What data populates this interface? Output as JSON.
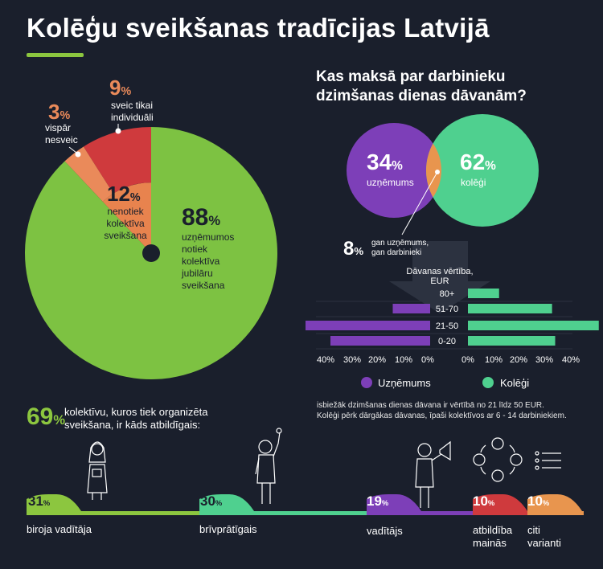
{
  "title": "Kolēģu sveikšanas tradīcijas Latvijā",
  "pie": {
    "slices": [
      {
        "key": "notiek",
        "value": 88,
        "pct": "88",
        "label": "uzņēmumos notiek kolektīva jubilāru sveikšana",
        "color": "#7dc242"
      },
      {
        "key": "nenotiek",
        "value": 12,
        "pct": "12",
        "label": "nenotiek kolektīva sveikšana",
        "color": "#e8834e"
      }
    ],
    "sub": [
      {
        "key": "individuali",
        "value": 9,
        "pct": "9",
        "label": "sveic tikai individuāli",
        "color": "#cf3a3d"
      },
      {
        "key": "nesveic",
        "value": 3,
        "pct": "3",
        "label": "vispār nesveic",
        "color": "#ea8a5a"
      }
    ]
  },
  "venn": {
    "question": "Kas maksā par darbinieku dzimšanas dienas dāvanām?",
    "company": {
      "pct": "34",
      "label": "uzņēmums",
      "color": "#7d3fb8"
    },
    "colleagues": {
      "pct": "62",
      "label": "kolēģi",
      "color": "#4fd08f"
    },
    "both": {
      "pct": "8",
      "label": "gan uzņēmums, gan darbinieki",
      "color": "#e8954e"
    }
  },
  "chart_data": {
    "type": "bar",
    "title": "Dāvanas vērtība, EUR",
    "categories": [
      "80+",
      "51-70",
      "21-50",
      "0-20"
    ],
    "series": [
      {
        "name": "Uzņēmums",
        "values": [
          0,
          12,
          40,
          32
        ],
        "color": "#7d3fb8"
      },
      {
        "name": "Kolēģi",
        "values": [
          10,
          27,
          42,
          28
        ],
        "color": "#4fd08f"
      }
    ],
    "xlim": [
      0,
      40
    ],
    "left_ticks": [
      "40%",
      "30%",
      "20%",
      "10%",
      "0%"
    ],
    "right_ticks": [
      "0%",
      "10%",
      "20%",
      "30%",
      "40%"
    ]
  },
  "legend": [
    {
      "name": "Uzņēmums",
      "color": "#7d3fb8"
    },
    {
      "name": "Kolēģi",
      "color": "#4fd08f"
    }
  ],
  "note": {
    "line1": "isbiežāk dzimšanas dienas dāvana ir vērtībā no 21 līdz 50 EUR.",
    "line2": "Kolēģi pērk dārgākas dāvanas, īpaši kolektīvos ar 6 - 14 darbiniekiem."
  },
  "stat": {
    "pct": "69",
    "text1": "kolektīvu, kuros tiek organizēta",
    "text2": "sveikšana, ir kāds atbildīgais:"
  },
  "responsible": [
    {
      "pct": "31",
      "label1": "biroja vadītāja",
      "label2": "",
      "color": "#8cc63f"
    },
    {
      "pct": "30",
      "label1": "brīvprātīgais",
      "label2": "",
      "color": "#4fd08f"
    },
    {
      "pct": "19",
      "label1": "vadītājs",
      "label2": "",
      "color": "#7d3fb8"
    },
    {
      "pct": "10",
      "label1": "atbildība",
      "label2": "mainās",
      "color": "#cf3a3d"
    },
    {
      "pct": "10",
      "label1": "citi",
      "label2": "varianti",
      "color": "#e8954e"
    }
  ]
}
